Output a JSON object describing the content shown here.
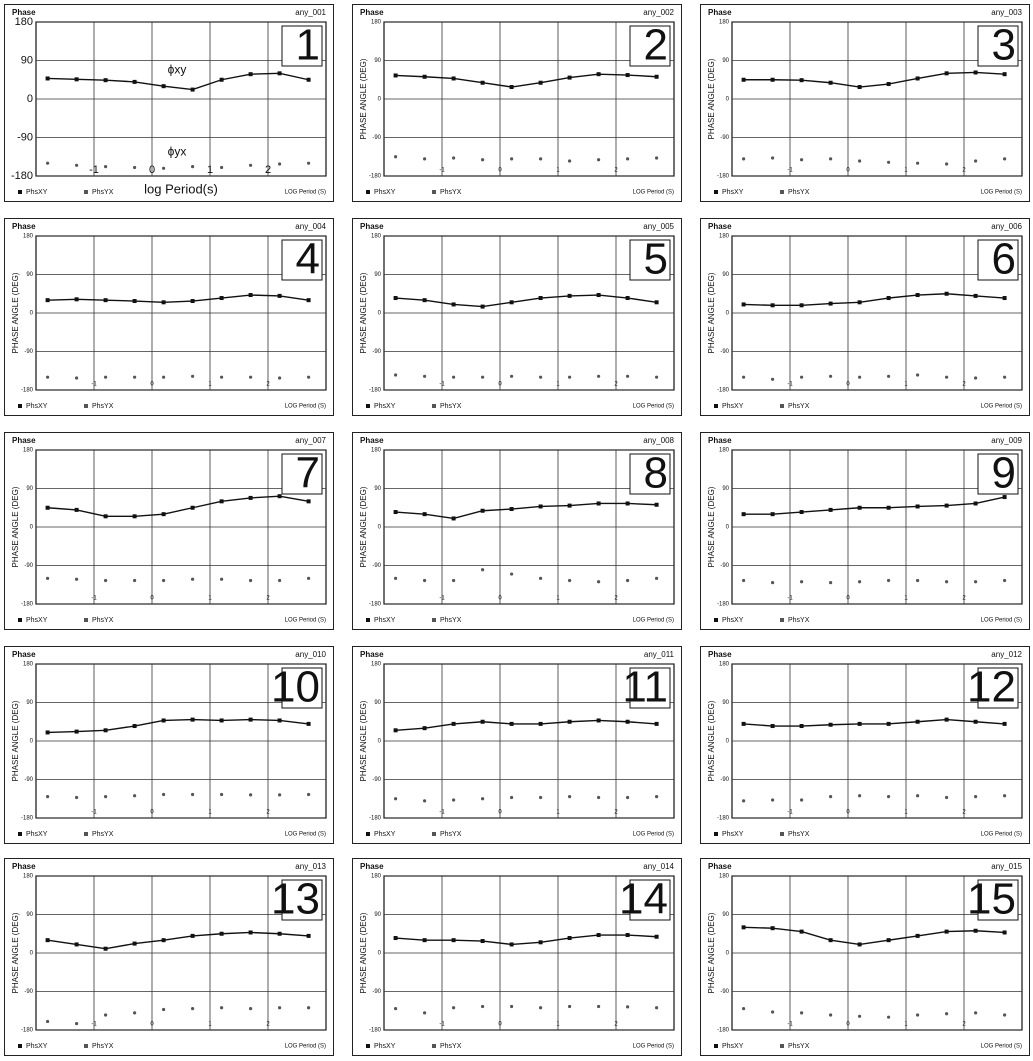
{
  "chart_data": [
    {
      "type": "line",
      "title": "Phase",
      "site": "any_001",
      "panel_number": 1,
      "xlabel": "log Period(s)",
      "x_note": "LOG Period (S)",
      "annotations": [
        "ϕxy",
        "ϕyx"
      ],
      "x": [
        -1.8,
        -1.3,
        -0.8,
        -0.3,
        0.2,
        0.7,
        1.2,
        1.7,
        2.2,
        2.7
      ],
      "xlim": [
        -2,
        3
      ],
      "xticks": [
        -1,
        0,
        1,
        2
      ],
      "ylim": [
        -180,
        180
      ],
      "yticks": [
        -180,
        -90,
        0,
        90,
        180
      ],
      "grid": true,
      "series": [
        {
          "name": "PhsXY",
          "color": "#111111",
          "style": "line",
          "values": [
            48,
            46,
            44,
            40,
            30,
            22,
            45,
            58,
            60,
            45
          ]
        },
        {
          "name": "PhsYX",
          "color": "#555555",
          "style": "markers",
          "values": [
            -150,
            -155,
            -158,
            -160,
            -162,
            -158,
            -160,
            -155,
            -152,
            -150
          ]
        }
      ]
    },
    {
      "type": "line",
      "title": "Phase",
      "site": "any_002",
      "panel_number": 2,
      "ylabel": "PHASE ANGLE (DEG)",
      "x_note": "LOG Period (S)",
      "x": [
        -1.8,
        -1.3,
        -0.8,
        -0.3,
        0.2,
        0.7,
        1.2,
        1.7,
        2.2,
        2.7
      ],
      "xlim": [
        -2,
        3
      ],
      "xticks": [
        -1,
        0,
        1,
        2
      ],
      "ylim": [
        -180,
        180
      ],
      "yticks": [
        -180,
        -90,
        0,
        90,
        180
      ],
      "grid": true,
      "series": [
        {
          "name": "PhsXY",
          "color": "#111111",
          "style": "line",
          "values": [
            55,
            52,
            48,
            38,
            28,
            38,
            50,
            58,
            56,
            52
          ]
        },
        {
          "name": "PhsYX",
          "color": "#555555",
          "style": "markers",
          "values": [
            -135,
            -140,
            -138,
            -142,
            -140,
            -140,
            -145,
            -142,
            -140,
            -138
          ]
        }
      ]
    },
    {
      "type": "line",
      "title": "Phase",
      "site": "any_003",
      "panel_number": 3,
      "ylabel": "PHASE ANGLE (DEG)",
      "x_note": "LOG Period (S)",
      "x": [
        -1.8,
        -1.3,
        -0.8,
        -0.3,
        0.2,
        0.7,
        1.2,
        1.7,
        2.2,
        2.7
      ],
      "xlim": [
        -2,
        3
      ],
      "xticks": [
        -1,
        0,
        1,
        2
      ],
      "ylim": [
        -180,
        180
      ],
      "yticks": [
        -180,
        -90,
        0,
        90,
        180
      ],
      "grid": true,
      "series": [
        {
          "name": "PhsXY",
          "color": "#111111",
          "style": "line",
          "values": [
            45,
            45,
            44,
            38,
            28,
            35,
            48,
            60,
            62,
            58
          ]
        },
        {
          "name": "PhsYX",
          "color": "#555555",
          "style": "markers",
          "values": [
            -140,
            -138,
            -142,
            -140,
            -145,
            -148,
            -150,
            -152,
            -145,
            -140
          ]
        }
      ]
    },
    {
      "type": "line",
      "title": "Phase",
      "site": "any_004",
      "panel_number": 4,
      "ylabel": "PHASE ANGLE (DEG)",
      "x_note": "LOG Period (S)",
      "x": [
        -1.8,
        -1.3,
        -0.8,
        -0.3,
        0.2,
        0.7,
        1.2,
        1.7,
        2.2,
        2.7
      ],
      "xlim": [
        -2,
        3
      ],
      "xticks": [
        -1,
        0,
        1,
        2
      ],
      "ylim": [
        -180,
        180
      ],
      "yticks": [
        -180,
        -90,
        0,
        90,
        180
      ],
      "grid": true,
      "series": [
        {
          "name": "PhsXY",
          "color": "#111111",
          "style": "line",
          "values": [
            30,
            32,
            30,
            28,
            25,
            28,
            35,
            42,
            40,
            30
          ]
        },
        {
          "name": "PhsYX",
          "color": "#555555",
          "style": "markers",
          "values": [
            -150,
            -152,
            -150,
            -150,
            -150,
            -148,
            -150,
            -150,
            -152,
            -150
          ]
        }
      ]
    },
    {
      "type": "line",
      "title": "Phase",
      "site": "any_005",
      "panel_number": 5,
      "ylabel": "PHASE ANGLE (DEG)",
      "x_note": "LOG Period (S)",
      "x": [
        -1.8,
        -1.3,
        -0.8,
        -0.3,
        0.2,
        0.7,
        1.2,
        1.7,
        2.2,
        2.7
      ],
      "xlim": [
        -2,
        3
      ],
      "xticks": [
        -1,
        0,
        1,
        2
      ],
      "ylim": [
        -180,
        180
      ],
      "yticks": [
        -180,
        -90,
        0,
        90,
        180
      ],
      "grid": true,
      "series": [
        {
          "name": "PhsXY",
          "color": "#111111",
          "style": "line",
          "values": [
            35,
            30,
            20,
            15,
            25,
            35,
            40,
            42,
            35,
            25
          ]
        },
        {
          "name": "PhsYX",
          "color": "#555555",
          "style": "markers",
          "values": [
            -145,
            -148,
            -150,
            -150,
            -148,
            -150,
            -150,
            -148,
            -148,
            -150
          ]
        }
      ]
    },
    {
      "type": "line",
      "title": "Phase",
      "site": "any_006",
      "panel_number": 6,
      "ylabel": "PHASE ANGLE (DEG)",
      "x_note": "LOG Period (S)",
      "x": [
        -1.8,
        -1.3,
        -0.8,
        -0.3,
        0.2,
        0.7,
        1.2,
        1.7,
        2.2,
        2.7
      ],
      "xlim": [
        -2,
        3
      ],
      "xticks": [
        -1,
        0,
        1,
        2
      ],
      "ylim": [
        -180,
        180
      ],
      "yticks": [
        -180,
        -90,
        0,
        90,
        180
      ],
      "grid": true,
      "series": [
        {
          "name": "PhsXY",
          "color": "#111111",
          "style": "line",
          "values": [
            20,
            18,
            18,
            22,
            25,
            35,
            42,
            45,
            40,
            35
          ]
        },
        {
          "name": "PhsYX",
          "color": "#555555",
          "style": "markers",
          "values": [
            -150,
            -155,
            -150,
            -148,
            -150,
            -148,
            -145,
            -150,
            -152,
            -150
          ]
        }
      ]
    },
    {
      "type": "line",
      "title": "Phase",
      "site": "any_007",
      "panel_number": 7,
      "ylabel": "PHASE ANGLE (DEG)",
      "x_note": "LOG Period (S)",
      "x": [
        -1.8,
        -1.3,
        -0.8,
        -0.3,
        0.2,
        0.7,
        1.2,
        1.7,
        2.2,
        2.7
      ],
      "xlim": [
        -2,
        3
      ],
      "xticks": [
        -1,
        0,
        1,
        2
      ],
      "ylim": [
        -180,
        180
      ],
      "yticks": [
        -180,
        -90,
        0,
        90,
        180
      ],
      "grid": true,
      "series": [
        {
          "name": "PhsXY",
          "color": "#111111",
          "style": "line",
          "values": [
            45,
            40,
            25,
            25,
            30,
            45,
            60,
            68,
            72,
            60
          ]
        },
        {
          "name": "PhsYX",
          "color": "#555555",
          "style": "markers",
          "values": [
            -120,
            -122,
            -125,
            -125,
            -125,
            -122,
            -122,
            -125,
            -125,
            -120
          ]
        }
      ]
    },
    {
      "type": "line",
      "title": "Phase",
      "site": "any_008",
      "panel_number": 8,
      "ylabel": "PHASE ANGLE (DEG)",
      "x_note": "LOG Period (S)",
      "x": [
        -1.8,
        -1.3,
        -0.8,
        -0.3,
        0.2,
        0.7,
        1.2,
        1.7,
        2.2,
        2.7
      ],
      "xlim": [
        -2,
        3
      ],
      "xticks": [
        -1,
        0,
        1,
        2
      ],
      "ylim": [
        -180,
        180
      ],
      "yticks": [
        -180,
        -90,
        0,
        90,
        180
      ],
      "grid": true,
      "series": [
        {
          "name": "PhsXY",
          "color": "#111111",
          "style": "line",
          "values": [
            35,
            30,
            20,
            38,
            42,
            48,
            50,
            55,
            55,
            52
          ]
        },
        {
          "name": "PhsYX",
          "color": "#555555",
          "style": "markers",
          "values": [
            -120,
            -125,
            -125,
            -100,
            -110,
            -120,
            -125,
            -128,
            -125,
            -120
          ]
        }
      ]
    },
    {
      "type": "line",
      "title": "Phase",
      "site": "any_009",
      "panel_number": 9,
      "ylabel": "PHASE ANGLE (DEG)",
      "x_note": "LOG Period (S)",
      "x": [
        -1.8,
        -1.3,
        -0.8,
        -0.3,
        0.2,
        0.7,
        1.2,
        1.7,
        2.2,
        2.7
      ],
      "xlim": [
        -2,
        3
      ],
      "xticks": [
        -1,
        0,
        1,
        2
      ],
      "ylim": [
        -180,
        180
      ],
      "yticks": [
        -180,
        -90,
        0,
        90,
        180
      ],
      "grid": true,
      "series": [
        {
          "name": "PhsXY",
          "color": "#111111",
          "style": "line",
          "values": [
            30,
            30,
            35,
            40,
            45,
            45,
            48,
            50,
            55,
            70
          ]
        },
        {
          "name": "PhsYX",
          "color": "#555555",
          "style": "markers",
          "values": [
            -125,
            -130,
            -128,
            -130,
            -128,
            -125,
            -125,
            -128,
            -128,
            -125
          ]
        }
      ]
    },
    {
      "type": "line",
      "title": "Phase",
      "site": "any_010",
      "panel_number": 10,
      "ylabel": "PHASE ANGLE (DEG)",
      "x_note": "LOG Period (S)",
      "x": [
        -1.8,
        -1.3,
        -0.8,
        -0.3,
        0.2,
        0.7,
        1.2,
        1.7,
        2.2,
        2.7
      ],
      "xlim": [
        -2,
        3
      ],
      "xticks": [
        -1,
        0,
        1,
        2
      ],
      "ylim": [
        -180,
        180
      ],
      "yticks": [
        -180,
        -90,
        0,
        90,
        180
      ],
      "grid": true,
      "series": [
        {
          "name": "PhsXY",
          "color": "#111111",
          "style": "line",
          "values": [
            20,
            22,
            25,
            35,
            48,
            50,
            48,
            50,
            48,
            40
          ]
        },
        {
          "name": "PhsYX",
          "color": "#555555",
          "style": "markers",
          "values": [
            -130,
            -132,
            -130,
            -128,
            -125,
            -125,
            -125,
            -126,
            -126,
            -125
          ]
        }
      ]
    },
    {
      "type": "line",
      "title": "Phase",
      "site": "any_011",
      "panel_number": 11,
      "ylabel": "PHASE ANGLE (DEG)",
      "x_note": "LOG Period (S)",
      "x": [
        -1.8,
        -1.3,
        -0.8,
        -0.3,
        0.2,
        0.7,
        1.2,
        1.7,
        2.2,
        2.7
      ],
      "xlim": [
        -2,
        3
      ],
      "xticks": [
        -1,
        0,
        1,
        2
      ],
      "ylim": [
        -180,
        180
      ],
      "yticks": [
        -180,
        -90,
        0,
        90,
        180
      ],
      "grid": true,
      "series": [
        {
          "name": "PhsXY",
          "color": "#111111",
          "style": "line",
          "values": [
            25,
            30,
            40,
            45,
            40,
            40,
            45,
            48,
            45,
            40
          ]
        },
        {
          "name": "PhsYX",
          "color": "#555555",
          "style": "markers",
          "values": [
            -135,
            -140,
            -138,
            -135,
            -132,
            -132,
            -130,
            -132,
            -132,
            -130
          ]
        }
      ]
    },
    {
      "type": "line",
      "title": "Phase",
      "site": "any_012",
      "panel_number": 12,
      "ylabel": "PHASE ANGLE (DEG)",
      "x_note": "LOG Period (S)",
      "x": [
        -1.8,
        -1.3,
        -0.8,
        -0.3,
        0.2,
        0.7,
        1.2,
        1.7,
        2.2,
        2.7
      ],
      "xlim": [
        -2,
        3
      ],
      "xticks": [
        -1,
        0,
        1,
        2
      ],
      "ylim": [
        -180,
        180
      ],
      "yticks": [
        -180,
        -90,
        0,
        90,
        180
      ],
      "grid": true,
      "series": [
        {
          "name": "PhsXY",
          "color": "#111111",
          "style": "line",
          "values": [
            40,
            35,
            35,
            38,
            40,
            40,
            45,
            50,
            45,
            40
          ]
        },
        {
          "name": "PhsYX",
          "color": "#555555",
          "style": "markers",
          "values": [
            -140,
            -138,
            -138,
            -130,
            -128,
            -130,
            -128,
            -132,
            -130,
            -128
          ]
        }
      ]
    },
    {
      "type": "line",
      "title": "Phase",
      "site": "any_013",
      "panel_number": 13,
      "ylabel": "PHASE ANGLE (DEG)",
      "x_note": "LOG Period (S)",
      "x": [
        -1.8,
        -1.3,
        -0.8,
        -0.3,
        0.2,
        0.7,
        1.2,
        1.7,
        2.2,
        2.7
      ],
      "xlim": [
        -2,
        3
      ],
      "xticks": [
        -1,
        0,
        1,
        2
      ],
      "ylim": [
        -180,
        180
      ],
      "yticks": [
        -180,
        -90,
        0,
        90,
        180
      ],
      "grid": true,
      "series": [
        {
          "name": "PhsXY",
          "color": "#111111",
          "style": "line",
          "values": [
            30,
            20,
            10,
            22,
            30,
            40,
            45,
            48,
            45,
            40
          ]
        },
        {
          "name": "PhsYX",
          "color": "#555555",
          "style": "markers",
          "values": [
            -160,
            -165,
            -145,
            -140,
            -132,
            -130,
            -128,
            -130,
            -128,
            -128
          ]
        }
      ]
    },
    {
      "type": "line",
      "title": "Phase",
      "site": "any_014",
      "panel_number": 14,
      "ylabel": "PHASE ANGLE (DEG)",
      "x_note": "LOG Period (S)",
      "x": [
        -1.8,
        -1.3,
        -0.8,
        -0.3,
        0.2,
        0.7,
        1.2,
        1.7,
        2.2,
        2.7
      ],
      "xlim": [
        -2,
        3
      ],
      "xticks": [
        -1,
        0,
        1,
        2
      ],
      "ylim": [
        -180,
        180
      ],
      "yticks": [
        -180,
        -90,
        0,
        90,
        180
      ],
      "grid": true,
      "series": [
        {
          "name": "PhsXY",
          "color": "#111111",
          "style": "line",
          "values": [
            35,
            30,
            30,
            28,
            20,
            25,
            35,
            42,
            42,
            38
          ]
        },
        {
          "name": "PhsYX",
          "color": "#555555",
          "style": "markers",
          "values": [
            -130,
            -140,
            -128,
            -125,
            -125,
            -128,
            -125,
            -125,
            -126,
            -128
          ]
        }
      ]
    },
    {
      "type": "line",
      "title": "Phase",
      "site": "any_015",
      "panel_number": 15,
      "ylabel": "PHASE ANGLE (DEG)",
      "x_note": "LOG Period (S)",
      "x": [
        -1.8,
        -1.3,
        -0.8,
        -0.3,
        0.2,
        0.7,
        1.2,
        1.7,
        2.2,
        2.7
      ],
      "xlim": [
        -2,
        3
      ],
      "xticks": [
        -1,
        0,
        1,
        2
      ],
      "ylim": [
        -180,
        180
      ],
      "yticks": [
        -180,
        -90,
        0,
        90,
        180
      ],
      "grid": true,
      "series": [
        {
          "name": "PhsXY",
          "color": "#111111",
          "style": "line",
          "values": [
            60,
            58,
            50,
            30,
            20,
            30,
            40,
            50,
            52,
            48
          ]
        },
        {
          "name": "PhsYX",
          "color": "#555555",
          "style": "markers",
          "values": [
            -130,
            -138,
            -140,
            -145,
            -148,
            -150,
            -145,
            -142,
            -140,
            -145
          ]
        }
      ]
    }
  ]
}
